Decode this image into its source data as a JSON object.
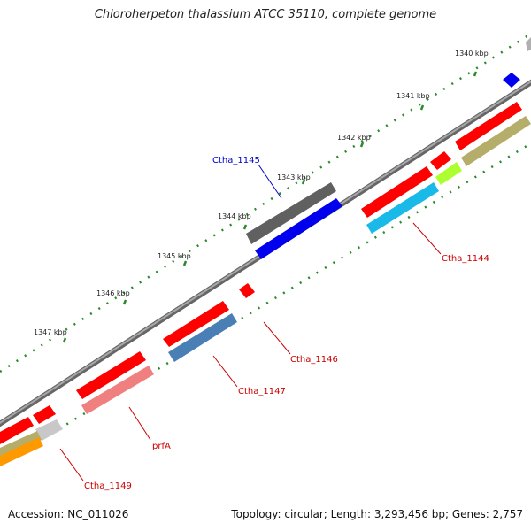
{
  "title": "Chloroherpeton thalassium ATCC 35110, complete genome",
  "footer": {
    "accession": "Accession: NC_011026",
    "summary": "Topology: circular; Length: 3,293,456 bp; Genes: 2,757"
  },
  "kbp_labels": [
    "1340 kbp",
    "1341 kbp",
    "1342 kbp",
    "1343 kbp",
    "1344 kbp",
    "1345 kbp",
    "1346 kbp",
    "1347 kbp"
  ],
  "gene_labels": [
    {
      "text": "Ctha_1145",
      "color": "#0000cc"
    },
    {
      "text": "Ctha_1144",
      "color": "#cc0000"
    },
    {
      "text": "Ctha_1146",
      "color": "#cc0000"
    },
    {
      "text": "Ctha_1147",
      "color": "#cc0000"
    },
    {
      "text": "prfA",
      "color": "#cc0000"
    },
    {
      "text": "Ctha_1149",
      "color": "#cc0000"
    }
  ],
  "colors": {
    "backbone": "#808080",
    "tick": "#2a8a2a",
    "red": "#ff0000",
    "blue": "#0000ee",
    "gray": "#666666",
    "light_gray": "#c8c8c8",
    "steel": "#4a7fb5",
    "sky": "#19b9e8",
    "pink": "#f08080",
    "olive": "#b5ae6a",
    "lime": "#adff2f",
    "orange": "#ff9900"
  }
}
